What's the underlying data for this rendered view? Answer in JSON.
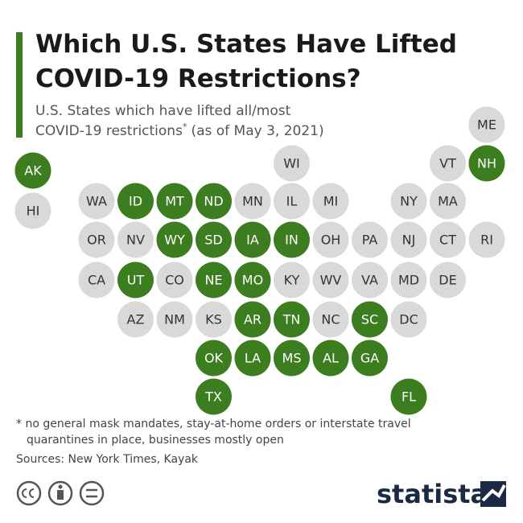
{
  "title_lines": [
    "Which U.S. States Have Lifted",
    "COVID-19 Restrictions?"
  ],
  "subtitle_lines": [
    "U.S. States which have lifted all/most",
    "COVID-19 restrictions"
  ],
  "subtitle_mark": "*",
  "subtitle_tail": "(as of May 3, 2021)",
  "colors": {
    "lifted": "#3b7d1f",
    "not_lifted": "#d9d9d9",
    "accent": "#3b7d1f"
  },
  "states": [
    {
      "label": "ME",
      "lifted": false
    },
    {
      "label": "WI",
      "lifted": false
    },
    {
      "label": "VT",
      "lifted": false
    },
    {
      "label": "NH",
      "lifted": true
    },
    {
      "label": "AK",
      "lifted": true
    },
    {
      "label": "HI",
      "lifted": false
    },
    {
      "label": "WA",
      "lifted": false
    },
    {
      "label": "ID",
      "lifted": true
    },
    {
      "label": "MT",
      "lifted": true
    },
    {
      "label": "ND",
      "lifted": true
    },
    {
      "label": "MN",
      "lifted": false
    },
    {
      "label": "IL",
      "lifted": false
    },
    {
      "label": "MI",
      "lifted": false
    },
    {
      "label": "NY",
      "lifted": false
    },
    {
      "label": "MA",
      "lifted": false
    },
    {
      "label": "OR",
      "lifted": false
    },
    {
      "label": "NV",
      "lifted": false
    },
    {
      "label": "WY",
      "lifted": true
    },
    {
      "label": "SD",
      "lifted": true
    },
    {
      "label": "IA",
      "lifted": true
    },
    {
      "label": "IN",
      "lifted": true
    },
    {
      "label": "OH",
      "lifted": false
    },
    {
      "label": "PA",
      "lifted": false
    },
    {
      "label": "NJ",
      "lifted": false
    },
    {
      "label": "CT",
      "lifted": false
    },
    {
      "label": "RI",
      "lifted": false
    },
    {
      "label": "CA",
      "lifted": false
    },
    {
      "label": "UT",
      "lifted": true
    },
    {
      "label": "CO",
      "lifted": false
    },
    {
      "label": "NE",
      "lifted": true
    },
    {
      "label": "MO",
      "lifted": true
    },
    {
      "label": "KY",
      "lifted": false
    },
    {
      "label": "WV",
      "lifted": false
    },
    {
      "label": "VA",
      "lifted": false
    },
    {
      "label": "MD",
      "lifted": false
    },
    {
      "label": "DE",
      "lifted": false
    },
    {
      "label": "AZ",
      "lifted": false
    },
    {
      "label": "NM",
      "lifted": false
    },
    {
      "label": "KS",
      "lifted": false
    },
    {
      "label": "AR",
      "lifted": true
    },
    {
      "label": "TN",
      "lifted": true
    },
    {
      "label": "NC",
      "lifted": false
    },
    {
      "label": "SC",
      "lifted": true
    },
    {
      "label": "DC",
      "lifted": false
    },
    {
      "label": "OK",
      "lifted": true
    },
    {
      "label": "LA",
      "lifted": true
    },
    {
      "label": "MS",
      "lifted": true
    },
    {
      "label": "AL",
      "lifted": true
    },
    {
      "label": "GA",
      "lifted": true
    },
    {
      "label": "TX",
      "lifted": true
    },
    {
      "label": "FL",
      "lifted": true
    }
  ],
  "footnote_lines": [
    "* no general mask mandates, stay-at-home orders or interstate travel",
    "quarantines in place, businesses mostly open"
  ],
  "source": "Sources: New York Times, Kayak",
  "brand": "statista"
}
